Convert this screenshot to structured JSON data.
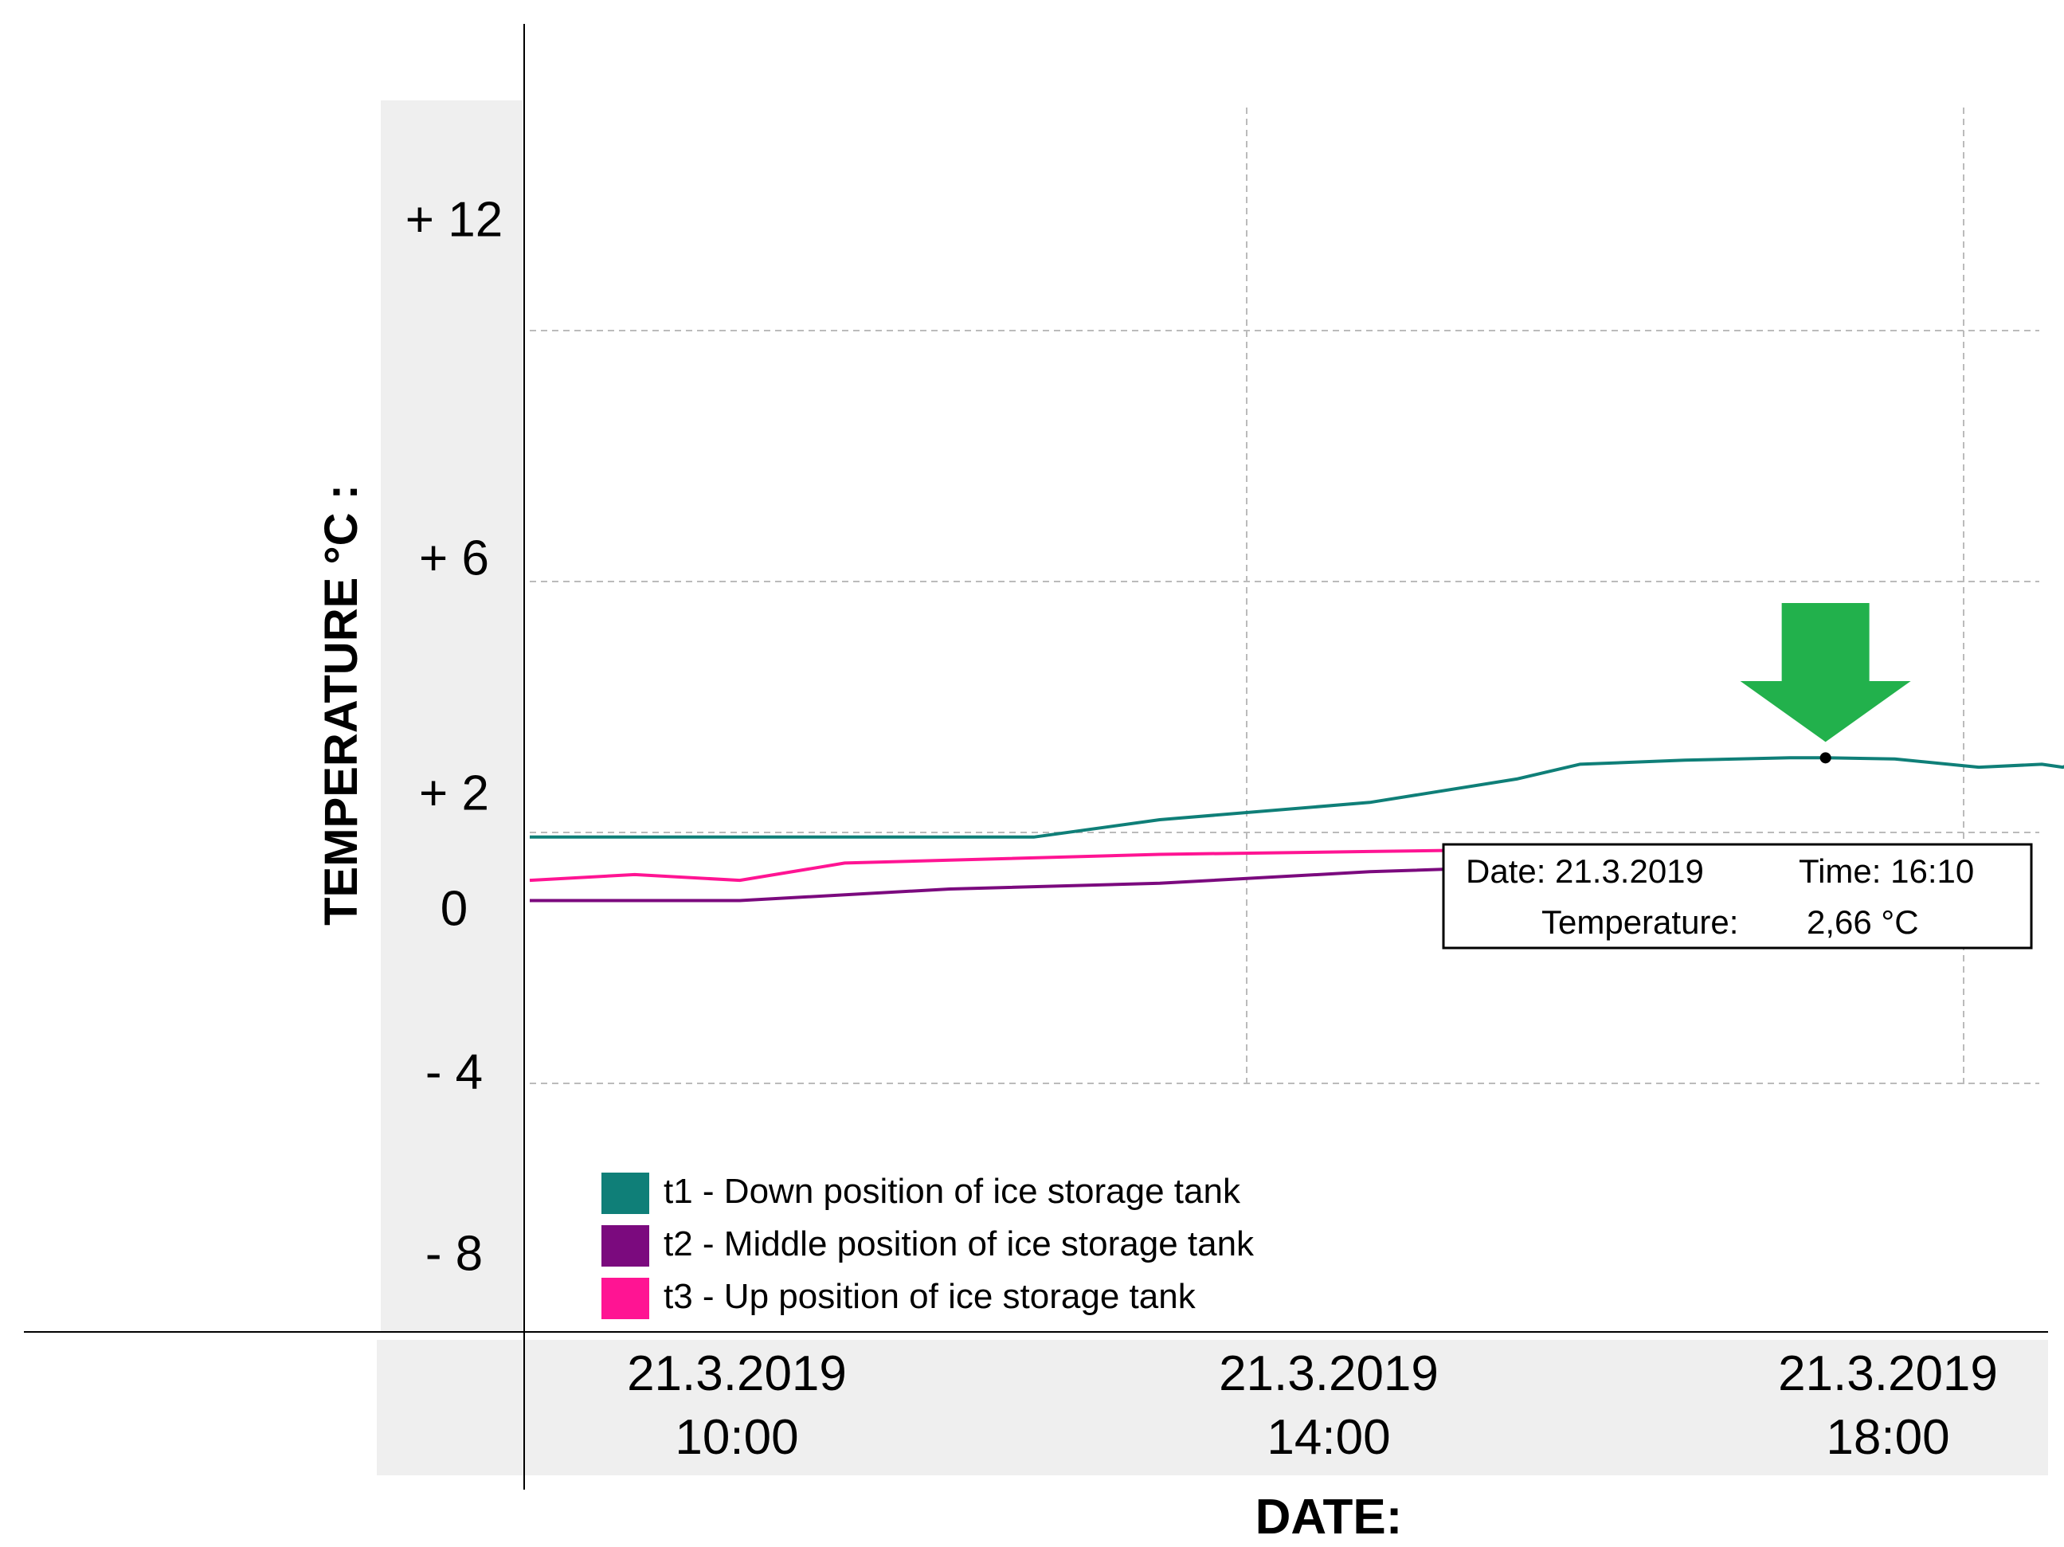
{
  "chart_data": {
    "type": "line",
    "ylabel": "TEMPERATURE  °C :",
    "xlabel": "DATE:",
    "y_ticks": [
      {
        "value": 12,
        "label": "+ 12"
      },
      {
        "value": 6,
        "label": "+ 6"
      },
      {
        "value": 2,
        "label": "+ 2"
      },
      {
        "value": 0,
        "label": "0"
      },
      {
        "value": -4,
        "label": "- 4"
      },
      {
        "value": -8,
        "label": "- 8"
      }
    ],
    "x_ticks": [
      {
        "hour": 10,
        "date": "21.3.2019",
        "time": "10:00"
      },
      {
        "hour": 14,
        "date": "21.3.2019",
        "time": "14:00"
      },
      {
        "hour": 18,
        "date": "21.3.2019",
        "time": "18:00"
      }
    ],
    "x_range_hours": [
      10,
      18.4
    ],
    "grid": true,
    "series": [
      {
        "name": "t1 - Down position of ice storage tank",
        "color": "#0f7f78",
        "x": [
          10,
          12.0,
          12.4,
          13.0,
          14.0,
          14.7,
          15.0,
          15.5,
          16.0,
          16.17,
          16.5,
          16.9,
          17.2,
          17.3,
          17.4,
          17.5,
          17.7,
          18.0,
          18.4
        ],
        "y": [
          1.3,
          1.3,
          1.3,
          1.6,
          1.9,
          2.3,
          2.55,
          2.62,
          2.66,
          2.66,
          2.64,
          2.5,
          2.55,
          2.5,
          2.65,
          2.38,
          2.3,
          2.2,
          2.2
        ]
      },
      {
        "name": "t2 - Middle position of ice storage tank",
        "color": "#7b0a7e",
        "x": [
          10,
          11.0,
          12.0,
          13.0,
          14.0,
          15.0,
          15.3
        ],
        "y": [
          0.2,
          0.2,
          0.4,
          0.5,
          0.7,
          0.82,
          0.85
        ]
      },
      {
        "name": "t3 - Up position of ice storage tank",
        "color": "#ff1493",
        "x": [
          10,
          10.5,
          11.0,
          11.5,
          12.0,
          13.0,
          14.0,
          15.0,
          15.3
        ],
        "y": [
          0.55,
          0.65,
          0.55,
          0.85,
          0.9,
          1.0,
          1.05,
          1.1,
          1.1
        ]
      }
    ],
    "highlight": {
      "hour": 16.17,
      "value": 2.66,
      "date_label": "Date: 21.3.2019",
      "time_label": "Time: 16:10",
      "temp_label": "Temperature:",
      "temp_value": "2,66 °C",
      "arrow_color": "#22b14c"
    }
  }
}
